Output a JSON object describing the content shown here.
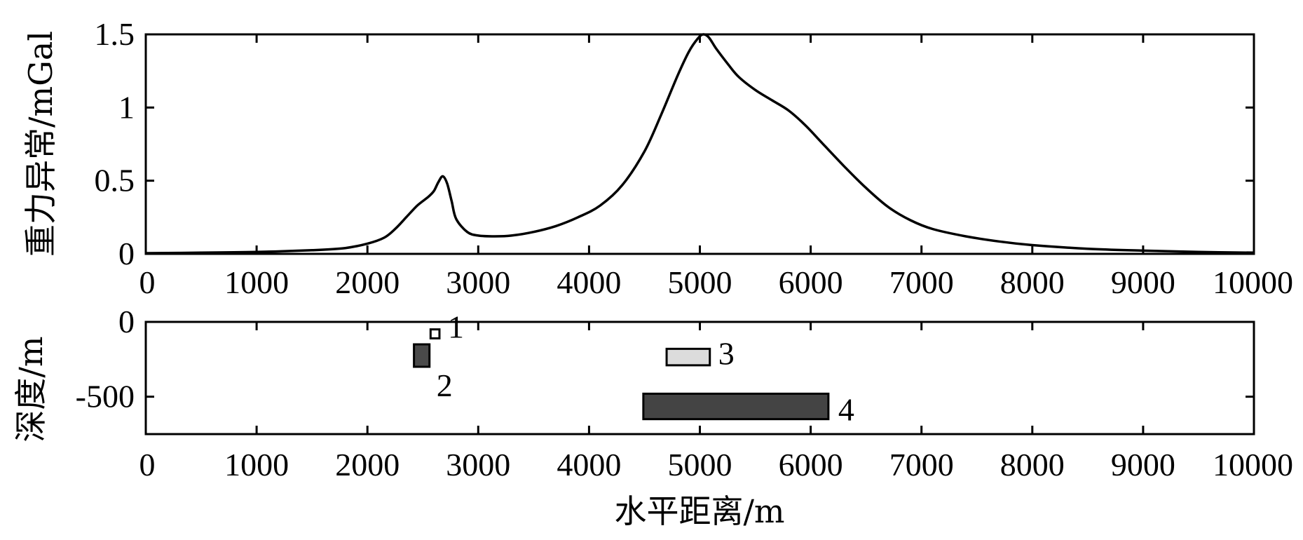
{
  "chart_data": [
    {
      "type": "line",
      "name": "gravity-anomaly",
      "title": "",
      "xlabel": "",
      "ylabel": "重力异常/mGal",
      "xlim": [
        0,
        10000
      ],
      "ylim": [
        0,
        1.5
      ],
      "xticks": [
        0,
        1000,
        2000,
        3000,
        4000,
        5000,
        6000,
        7000,
        8000,
        9000,
        10000
      ],
      "xtick_labels": [
        "0",
        "1000",
        "2000",
        "3000",
        "4000",
        "5000",
        "6000",
        "7000",
        "8000",
        "9000",
        "10000"
      ],
      "yticks": [
        0,
        0.5,
        1,
        1.5
      ],
      "ytick_labels": [
        "0",
        "0.5",
        "1",
        "1.5"
      ],
      "grid": false,
      "series": [
        {
          "x": [
            0,
            500,
            1000,
            1500,
            1800,
            2000,
            2150,
            2250,
            2350,
            2450,
            2550,
            2600,
            2640,
            2680,
            2720,
            2760,
            2800,
            2900,
            3000,
            3150,
            3300,
            3500,
            3700,
            3900,
            4100,
            4300,
            4500,
            4650,
            4800,
            4900,
            4980,
            5030,
            5080,
            5150,
            5250,
            5350,
            5500,
            5650,
            5800,
            5950,
            6100,
            6300,
            6500,
            6700,
            6900,
            7100,
            7400,
            7700,
            8000,
            8500,
            9000,
            9500,
            10000
          ],
          "values": [
            0.005,
            0.008,
            0.013,
            0.025,
            0.04,
            0.07,
            0.11,
            0.17,
            0.25,
            0.33,
            0.39,
            0.43,
            0.49,
            0.53,
            0.48,
            0.36,
            0.24,
            0.15,
            0.125,
            0.12,
            0.125,
            0.15,
            0.19,
            0.25,
            0.33,
            0.47,
            0.7,
            0.95,
            1.22,
            1.38,
            1.47,
            1.5,
            1.48,
            1.4,
            1.3,
            1.21,
            1.12,
            1.05,
            0.98,
            0.88,
            0.76,
            0.6,
            0.45,
            0.32,
            0.23,
            0.17,
            0.12,
            0.085,
            0.06,
            0.035,
            0.022,
            0.013,
            0.008
          ]
        }
      ]
    },
    {
      "type": "rect",
      "name": "density-model",
      "title": "",
      "xlabel": "水平距离/m",
      "ylabel": "深度/m",
      "xlim": [
        0,
        10000
      ],
      "ylim": [
        -750,
        0
      ],
      "xticks": [
        0,
        1000,
        2000,
        3000,
        4000,
        5000,
        6000,
        7000,
        8000,
        9000,
        10000
      ],
      "xtick_labels": [
        "0",
        "1000",
        "2000",
        "3000",
        "4000",
        "5000",
        "6000",
        "7000",
        "8000",
        "9000",
        "10000"
      ],
      "yticks": [
        0,
        -500
      ],
      "ytick_labels": [
        "0",
        "-500"
      ],
      "grid": false,
      "bodies": [
        {
          "label": "1",
          "x0": 2570,
          "x1": 2650,
          "top": -50,
          "bottom": -110,
          "color": "#ffffff"
        },
        {
          "label": "2",
          "x0": 2420,
          "x1": 2560,
          "top": -150,
          "bottom": -300,
          "color": "#4a4a4a"
        },
        {
          "label": "3",
          "x0": 4700,
          "x1": 5090,
          "top": -180,
          "bottom": -290,
          "color": "#dcdcdc"
        },
        {
          "label": "4",
          "x0": 4490,
          "x1": 6160,
          "top": -480,
          "bottom": -650,
          "color": "#444444"
        }
      ]
    }
  ]
}
